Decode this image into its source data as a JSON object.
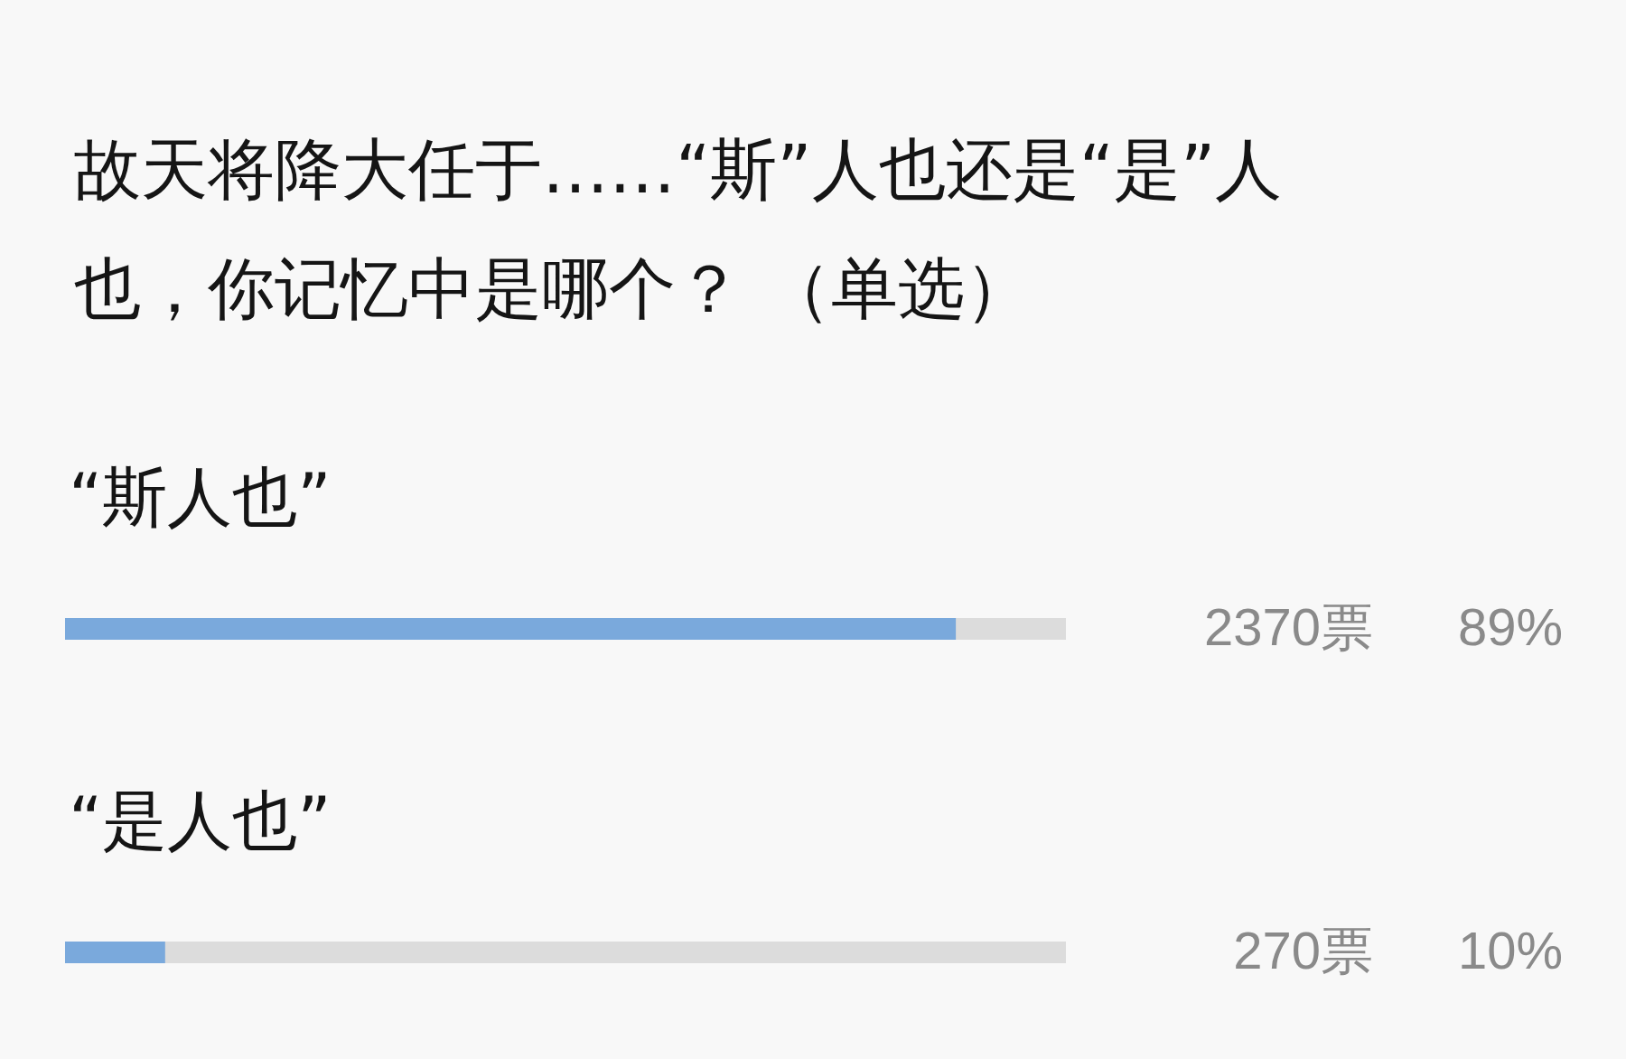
{
  "chart_data": {
    "type": "bar",
    "orientation": "horizontal",
    "title": "故天将降大任于……“斯”人也还是“是”人也，你记忆中是哪个？ （单选）",
    "categories": [
      "“斯人也”",
      "“是人也”"
    ],
    "values": [
      89,
      10
    ],
    "value_labels": [
      "89%",
      "10%"
    ],
    "annotations": [
      "2370票",
      "270票"
    ],
    "color": "#7aa9dc",
    "xlim": [
      0,
      100
    ],
    "tick_labels": "y"
  }
}
